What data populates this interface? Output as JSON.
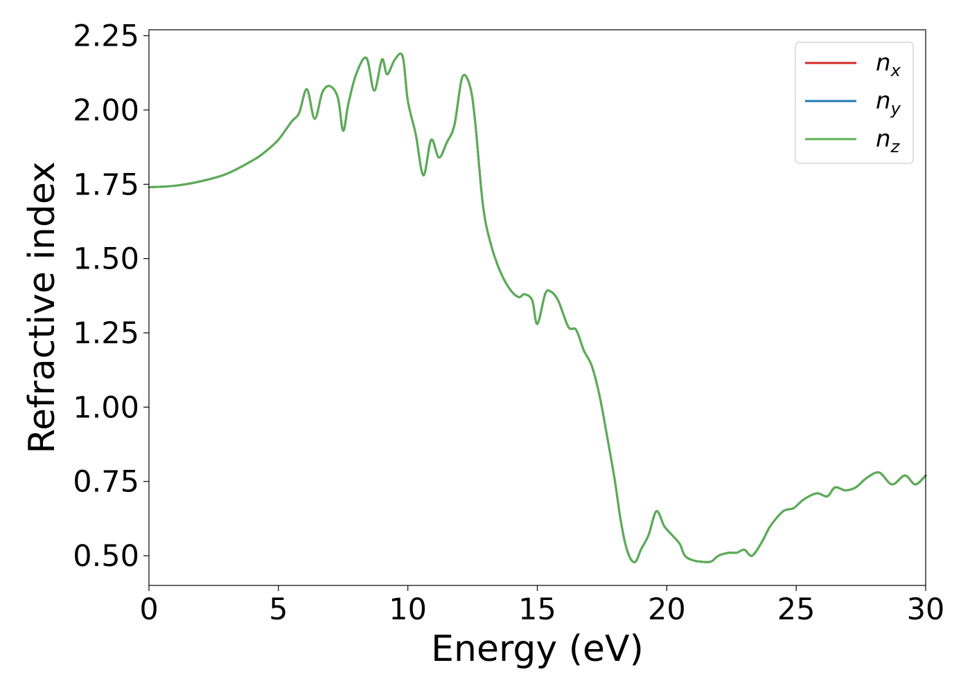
{
  "chart_data": {
    "type": "line",
    "xlabel": "Energy (eV)",
    "ylabel": "Refractive index",
    "xlim": [
      0,
      30
    ],
    "ylim": [
      0.4,
      2.27
    ],
    "xticks": [
      0,
      5,
      10,
      15,
      20,
      25,
      30
    ],
    "xtick_labels": [
      "0",
      "5",
      "10",
      "15",
      "20",
      "25",
      "30"
    ],
    "yticks": [
      0.5,
      0.75,
      1.0,
      1.25,
      1.5,
      1.75,
      2.0,
      2.25
    ],
    "ytick_labels": [
      "0.50",
      "0.75",
      "1.00",
      "1.25",
      "1.50",
      "1.75",
      "2.00",
      "2.25"
    ],
    "grid": false,
    "legend_position": "top-right",
    "x": [
      0,
      1,
      2,
      3,
      4,
      4.5,
      5,
      5.5,
      5.8,
      6.1,
      6.4,
      6.7,
      7.0,
      7.3,
      7.5,
      7.7,
      8.0,
      8.4,
      8.7,
      9.0,
      9.2,
      9.5,
      9.8,
      10.0,
      10.3,
      10.6,
      10.9,
      11.2,
      11.5,
      11.8,
      12.1,
      12.4,
      12.6,
      12.9,
      13.2,
      13.6,
      14.0,
      14.3,
      14.5,
      14.8,
      15.0,
      15.3,
      15.5,
      15.8,
      16.2,
      16.5,
      16.8,
      17.1,
      17.4,
      17.7,
      18.0,
      18.2,
      18.4,
      18.6,
      18.8,
      19.0,
      19.3,
      19.6,
      19.9,
      20.2,
      20.5,
      20.7,
      21.0,
      21.3,
      21.7,
      22.0,
      22.4,
      22.7,
      23.0,
      23.3,
      23.7,
      24.0,
      24.5,
      24.9,
      25.3,
      25.8,
      26.2,
      26.5,
      26.9,
      27.3,
      27.7,
      28.2,
      28.7,
      29.2,
      29.6,
      30.0
    ],
    "series": [
      {
        "name": "n_x",
        "color": "#d62728",
        "values": [
          1.74,
          1.745,
          1.76,
          1.785,
          1.83,
          1.86,
          1.9,
          1.96,
          1.99,
          2.07,
          1.97,
          2.06,
          2.08,
          2.04,
          1.93,
          2.02,
          2.12,
          2.175,
          2.065,
          2.17,
          2.12,
          2.17,
          2.18,
          2.03,
          1.92,
          1.78,
          1.9,
          1.84,
          1.89,
          1.95,
          2.11,
          2.08,
          1.96,
          1.68,
          1.55,
          1.45,
          1.39,
          1.37,
          1.38,
          1.36,
          1.28,
          1.38,
          1.39,
          1.36,
          1.27,
          1.26,
          1.19,
          1.14,
          1.04,
          0.9,
          0.75,
          0.63,
          0.54,
          0.49,
          0.48,
          0.52,
          0.57,
          0.65,
          0.6,
          0.57,
          0.54,
          0.5,
          0.485,
          0.48,
          0.48,
          0.5,
          0.51,
          0.51,
          0.52,
          0.5,
          0.55,
          0.6,
          0.65,
          0.66,
          0.69,
          0.71,
          0.7,
          0.73,
          0.72,
          0.73,
          0.76,
          0.78,
          0.74,
          0.77,
          0.74,
          0.77
        ]
      },
      {
        "name": "n_y",
        "color": "#1f77b4",
        "values": [
          1.74,
          1.745,
          1.76,
          1.785,
          1.83,
          1.86,
          1.9,
          1.96,
          1.99,
          2.07,
          1.97,
          2.06,
          2.08,
          2.04,
          1.93,
          2.02,
          2.12,
          2.175,
          2.065,
          2.17,
          2.12,
          2.17,
          2.18,
          2.03,
          1.92,
          1.78,
          1.9,
          1.84,
          1.89,
          1.95,
          2.11,
          2.08,
          1.96,
          1.68,
          1.55,
          1.45,
          1.39,
          1.37,
          1.38,
          1.36,
          1.28,
          1.38,
          1.39,
          1.36,
          1.27,
          1.26,
          1.19,
          1.14,
          1.04,
          0.9,
          0.75,
          0.63,
          0.54,
          0.49,
          0.48,
          0.52,
          0.57,
          0.65,
          0.6,
          0.57,
          0.54,
          0.5,
          0.485,
          0.48,
          0.48,
          0.5,
          0.51,
          0.51,
          0.52,
          0.5,
          0.55,
          0.6,
          0.65,
          0.66,
          0.69,
          0.71,
          0.7,
          0.73,
          0.72,
          0.73,
          0.76,
          0.78,
          0.74,
          0.77,
          0.74,
          0.77
        ]
      },
      {
        "name": "n_z",
        "color": "#5aae52",
        "values": [
          1.74,
          1.745,
          1.76,
          1.785,
          1.83,
          1.86,
          1.9,
          1.96,
          1.99,
          2.07,
          1.97,
          2.06,
          2.08,
          2.04,
          1.93,
          2.02,
          2.12,
          2.175,
          2.065,
          2.17,
          2.12,
          2.17,
          2.18,
          2.03,
          1.92,
          1.78,
          1.9,
          1.84,
          1.89,
          1.95,
          2.11,
          2.08,
          1.96,
          1.68,
          1.55,
          1.45,
          1.39,
          1.37,
          1.38,
          1.36,
          1.28,
          1.38,
          1.39,
          1.36,
          1.27,
          1.26,
          1.19,
          1.14,
          1.04,
          0.9,
          0.75,
          0.63,
          0.54,
          0.49,
          0.48,
          0.52,
          0.57,
          0.65,
          0.6,
          0.57,
          0.54,
          0.5,
          0.485,
          0.48,
          0.48,
          0.5,
          0.51,
          0.51,
          0.52,
          0.5,
          0.55,
          0.6,
          0.65,
          0.66,
          0.69,
          0.71,
          0.7,
          0.73,
          0.72,
          0.73,
          0.76,
          0.78,
          0.74,
          0.77,
          0.74,
          0.77
        ]
      }
    ],
    "legend": [
      {
        "base": "n",
        "sub": "x",
        "color": "#d62728"
      },
      {
        "base": "n",
        "sub": "y",
        "color": "#1f77b4"
      },
      {
        "base": "n",
        "sub": "z",
        "color": "#5aae52"
      }
    ]
  }
}
